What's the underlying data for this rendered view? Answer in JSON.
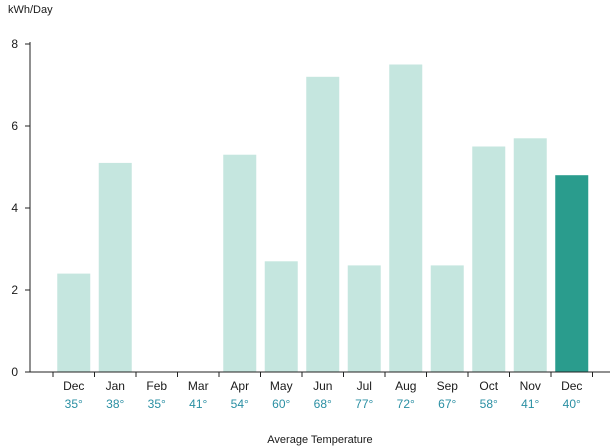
{
  "chart_data": {
    "type": "bar",
    "title": "",
    "ylabel": "kWh/Day",
    "xlabel": "Average Temperature",
    "ylim": [
      0,
      8
    ],
    "yticks": [
      0,
      2,
      4,
      6,
      8
    ],
    "categories": [
      "Dec",
      "Jan",
      "Feb",
      "Mar",
      "Apr",
      "May",
      "Jun",
      "Jul",
      "Aug",
      "Sep",
      "Oct",
      "Nov",
      "Dec"
    ],
    "temperatures": [
      "35°",
      "38°",
      "35°",
      "41°",
      "54°",
      "60°",
      "68°",
      "77°",
      "72°",
      "67°",
      "58°",
      "41°",
      "40°"
    ],
    "values": [
      2.4,
      5.1,
      null,
      null,
      5.3,
      2.7,
      7.2,
      2.6,
      7.5,
      2.6,
      5.5,
      5.7,
      4.8
    ],
    "colors": {
      "bar": "#c5e6df",
      "highlight": "#2a9c8d",
      "axis": "#222222",
      "temperature_text": "#2a8fa3"
    },
    "highlight_index": 12,
    "grid": false
  }
}
